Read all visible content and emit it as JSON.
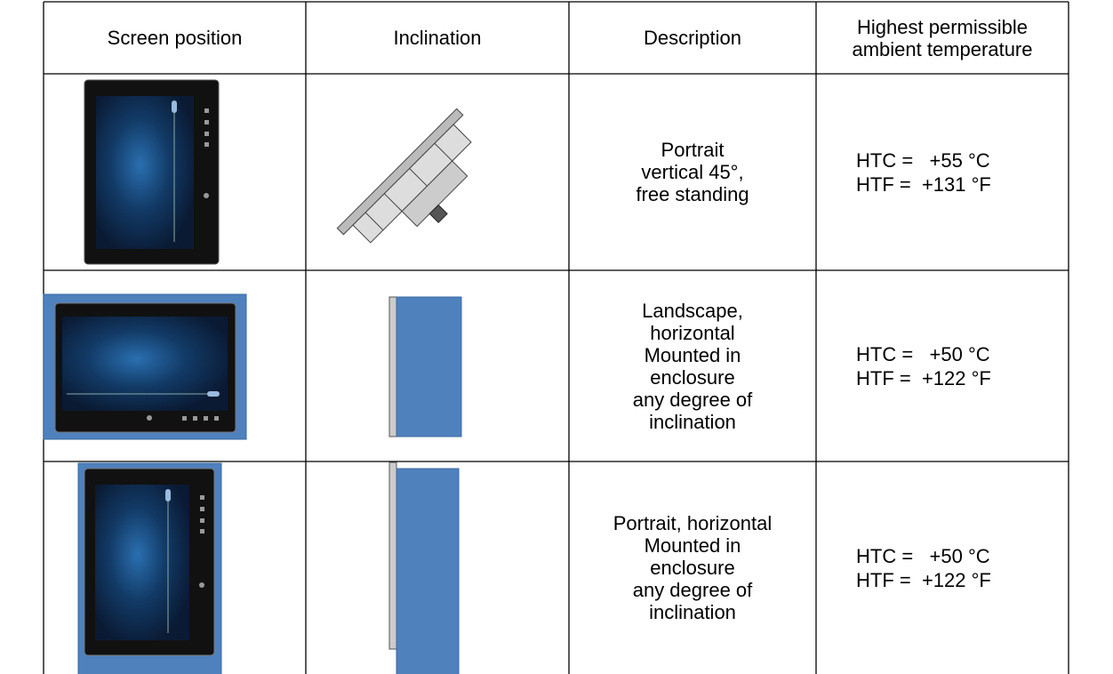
{
  "table": {
    "header": [
      "Screen position",
      "Inclination",
      "Description",
      [
        "Highest permissible",
        "ambient temperature"
      ]
    ],
    "rows": [
      {
        "description": [
          "Portrait",
          "vertical 45°,",
          "free standing"
        ],
        "temperature": [
          "HTC =   +55 °C",
          "HTF =  +131 °F"
        ]
      },
      {
        "description": [
          "Landscape,",
          "horizontal",
          "Mounted in",
          "enclosure",
          "any degree of",
          "inclination"
        ],
        "temperature": [
          "HTC =   +50 °C",
          "HTF =  +122 °F"
        ]
      },
      {
        "description": [
          "Portrait, horizontal",
          "Mounted in",
          "enclosure",
          "any degree of",
          "inclination"
        ],
        "temperature": [
          "HTC =   +50 °C",
          "HTF =  +122 °F"
        ]
      }
    ]
  }
}
